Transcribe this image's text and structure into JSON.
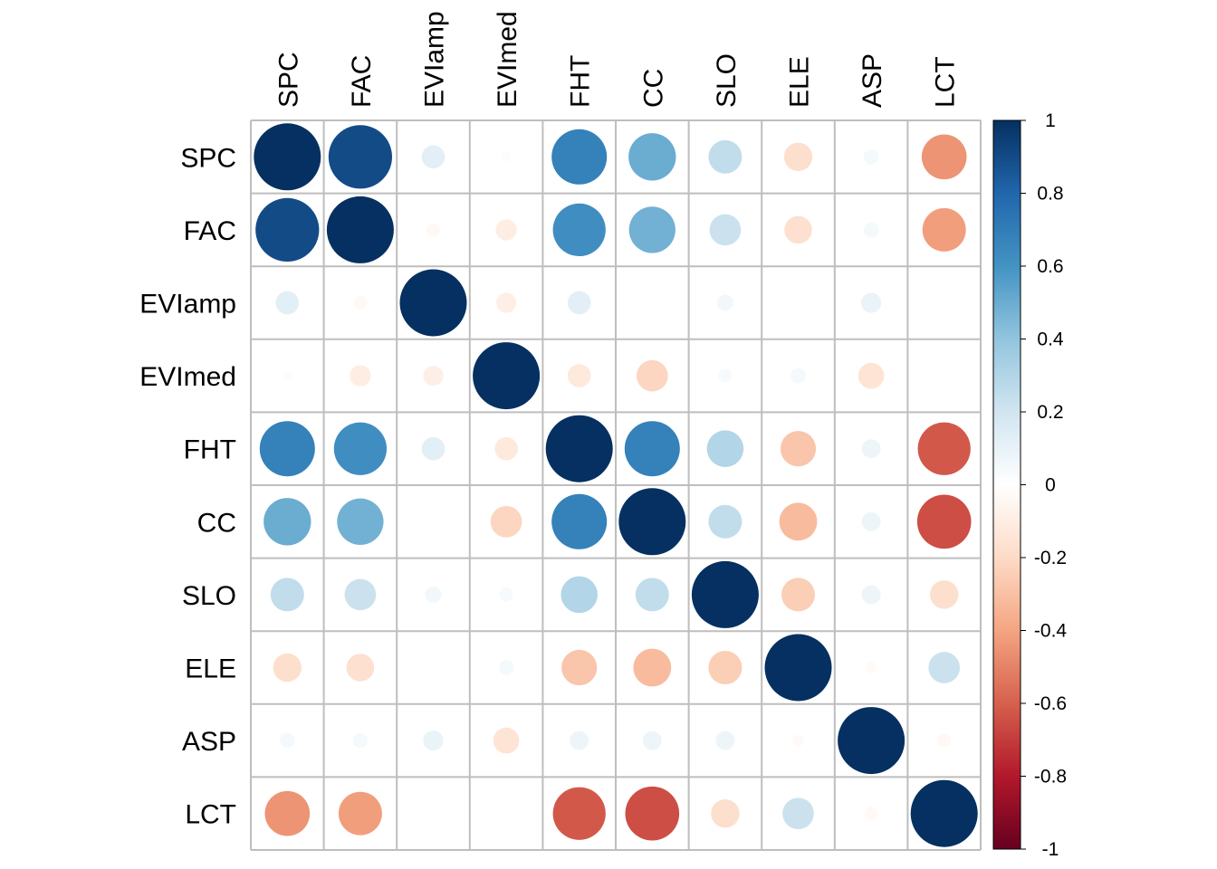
{
  "chart_data": {
    "type": "heatmap",
    "style": "corrplot-circle",
    "title": "",
    "variables": [
      "SPC",
      "FAC",
      "EVIamp",
      "EVImed",
      "FHT",
      "CC",
      "SLO",
      "ELE",
      "ASP",
      "LCT"
    ],
    "matrix": [
      [
        1.0,
        0.9,
        0.12,
        0.02,
        0.68,
        0.5,
        0.25,
        -0.18,
        0.05,
        -0.45
      ],
      [
        0.9,
        1.0,
        -0.04,
        -0.1,
        0.62,
        0.48,
        0.22,
        -0.17,
        0.05,
        -0.42
      ],
      [
        0.12,
        -0.04,
        1.0,
        -0.09,
        0.12,
        0.0,
        0.06,
        0.0,
        0.09,
        0.0
      ],
      [
        0.02,
        -0.1,
        -0.09,
        1.0,
        -0.12,
        -0.22,
        0.04,
        0.05,
        -0.15,
        0.01
      ],
      [
        0.68,
        0.62,
        0.12,
        -0.12,
        1.0,
        0.68,
        0.3,
        -0.28,
        0.08,
        -0.62
      ],
      [
        0.5,
        0.48,
        0.0,
        -0.22,
        0.68,
        1.0,
        0.25,
        -0.32,
        0.08,
        -0.65
      ],
      [
        0.25,
        0.22,
        0.06,
        0.04,
        0.3,
        0.25,
        1.0,
        -0.25,
        0.08,
        -0.18
      ],
      [
        -0.18,
        -0.17,
        0.0,
        0.05,
        -0.28,
        -0.32,
        -0.25,
        1.0,
        -0.03,
        0.22
      ],
      [
        0.05,
        0.05,
        0.09,
        -0.15,
        0.08,
        0.08,
        0.08,
        -0.03,
        1.0,
        -0.04
      ],
      [
        -0.45,
        -0.42,
        0.0,
        0.01,
        -0.62,
        -0.65,
        -0.18,
        0.22,
        -0.04,
        1.0
      ]
    ],
    "colorbar": {
      "min": -1,
      "max": 1,
      "ticks": [
        "1",
        "0.8",
        "0.6",
        "0.4",
        "0.2",
        "0",
        "-0.2",
        "-0.4",
        "-0.6",
        "-0.8",
        "-1"
      ],
      "tick_values": [
        1,
        0.8,
        0.6,
        0.4,
        0.2,
        0,
        -0.2,
        -0.4,
        -0.6,
        -0.8,
        -1
      ],
      "colors": [
        "#67001F",
        "#B2182B",
        "#D6604D",
        "#F4A582",
        "#FDDBC7",
        "#FFFFFF",
        "#D1E5F0",
        "#92C5DE",
        "#4393C3",
        "#2166AC",
        "#053061"
      ]
    },
    "grid": true,
    "grid_color": "#BEBEBE",
    "legend_position": "right"
  }
}
